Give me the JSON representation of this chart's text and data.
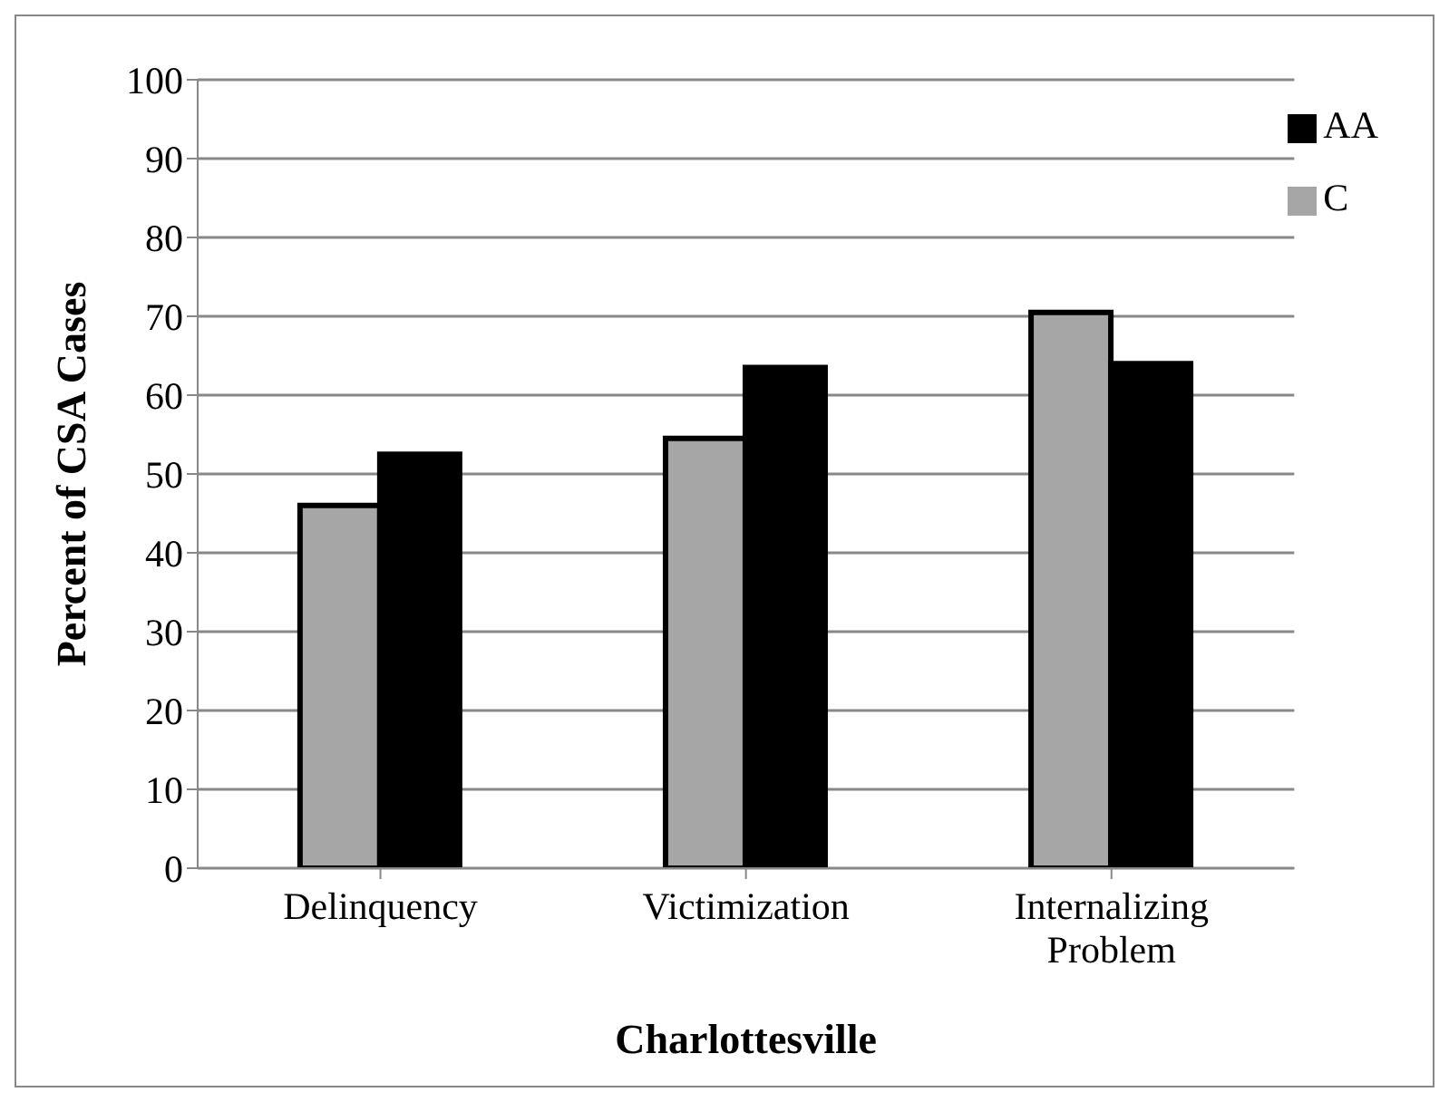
{
  "chart_data": {
    "type": "bar",
    "xlabel": "Charlottesville",
    "ylabel": "Percent of CSA Cases",
    "categories": [
      "Delinquency",
      "Victimization",
      "Internalizing Problem"
    ],
    "series": [
      {
        "name": "C",
        "color": "#a6a6a6",
        "values": [
          46,
          54.5,
          70.5
        ]
      },
      {
        "name": "AA",
        "color": "#000000",
        "values": [
          52.5,
          63.5,
          64
        ]
      }
    ],
    "ylim": [
      0,
      100
    ],
    "yticks": [
      0,
      10,
      20,
      30,
      40,
      50,
      60,
      70,
      80,
      90,
      100
    ],
    "grid": "y",
    "legend": "top right"
  }
}
